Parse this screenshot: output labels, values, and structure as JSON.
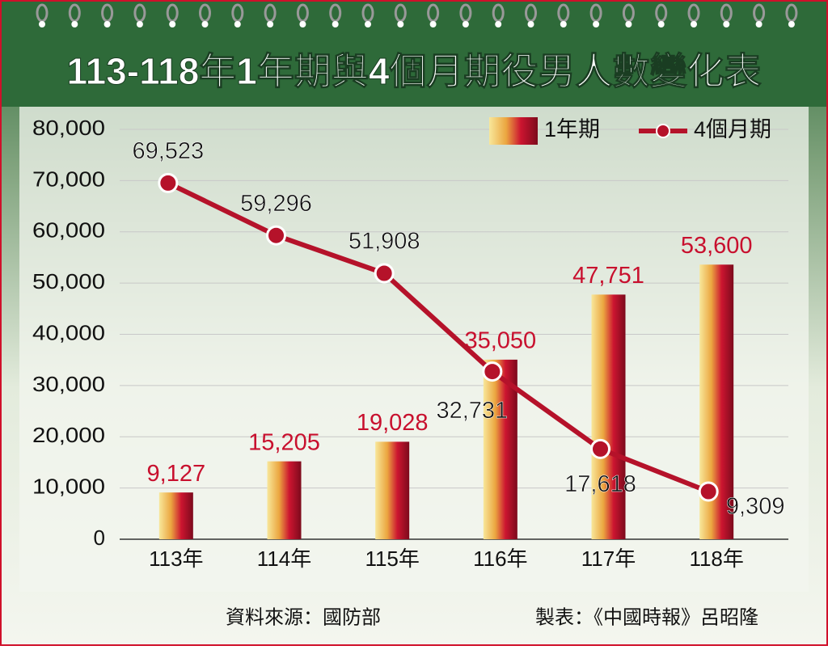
{
  "chart_data": {
    "type": "bar_line",
    "title": "113-118年1年期與4個月期役男人數變化表",
    "categories": [
      "113年",
      "114年",
      "115年",
      "116年",
      "117年",
      "118年"
    ],
    "series": [
      {
        "name": "1年期",
        "type": "bar",
        "color": "#c8102e",
        "values": [
          9127,
          15205,
          19028,
          35050,
          47751,
          53600
        ],
        "value_labels": [
          "9,127",
          "15,205",
          "19,028",
          "35,050",
          "47,751",
          "53,600"
        ]
      },
      {
        "name": "4個月期",
        "type": "line",
        "color": "#b5122a",
        "values": [
          69523,
          59296,
          51908,
          32731,
          17618,
          9309
        ],
        "value_labels": [
          "69,523",
          "59,296",
          "51,908",
          "32,731",
          "17,618",
          "9,309"
        ]
      }
    ],
    "ylim": [
      0,
      80000
    ],
    "yticks": [
      0,
      {
        "value": 10000,
        "label": "10,000"
      },
      {
        "value": 20000,
        "label": "20,000"
      },
      {
        "value": 30000,
        "label": "30,000"
      },
      {
        "value": 40000,
        "label": "40,000"
      },
      {
        "value": 50000,
        "label": "50,000"
      },
      {
        "value": 60000,
        "label": "60,000"
      },
      {
        "value": 70000,
        "label": "70,000"
      },
      {
        "value": 80000,
        "label": "80,000"
      }
    ],
    "grid": true,
    "legend": "top-right",
    "source": "資料來源：國防部",
    "credit": "製表：《中國時報》呂昭隆"
  }
}
